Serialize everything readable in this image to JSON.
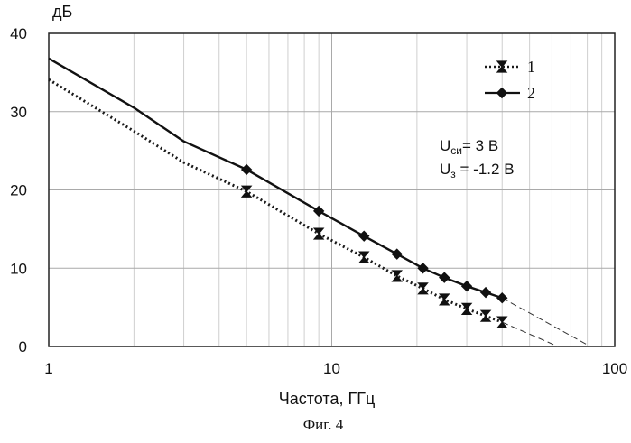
{
  "figure_caption": "Фиг. 4",
  "chart_data": {
    "type": "line",
    "x_scale": "log",
    "xlim": [
      1,
      100
    ],
    "ylim": [
      0,
      40
    ],
    "xlabel": "Частота, ГГц",
    "ylabel": "дБ",
    "x_ticks": [
      "1",
      "10",
      "100"
    ],
    "y_ticks": [
      "0",
      "10",
      "20",
      "30",
      "40"
    ],
    "grid": true,
    "legend_position": "top-right",
    "series": [
      {
        "name": "1",
        "style": "dotted",
        "marker": "hourglass",
        "color": "#1a1a1a",
        "line_x": [
          1,
          2,
          3,
          5,
          9,
          13,
          17,
          21,
          25,
          30,
          35,
          40
        ],
        "line_y": [
          34.1,
          27.5,
          23.5,
          19.8,
          14.4,
          11.4,
          9.0,
          7.4,
          6.0,
          4.8,
          3.9,
          3.1
        ],
        "marker_x": [
          5,
          9,
          13,
          17,
          21,
          25,
          30,
          35,
          40
        ],
        "marker_y": [
          19.8,
          14.4,
          11.4,
          9.0,
          7.4,
          6.0,
          4.8,
          3.9,
          3.1
        ],
        "extrapolation_x": [
          40,
          63
        ],
        "extrapolation_y": [
          3.1,
          0
        ]
      },
      {
        "name": "2",
        "style": "solid",
        "marker": "diamond",
        "color": "#111111",
        "line_x": [
          1,
          2,
          3,
          5,
          9,
          13,
          17,
          21,
          25,
          30,
          35,
          40
        ],
        "line_y": [
          36.8,
          30.5,
          26.2,
          22.6,
          17.3,
          14.1,
          11.8,
          10.0,
          8.8,
          7.7,
          6.9,
          6.2
        ],
        "marker_x": [
          5,
          9,
          13,
          17,
          21,
          25,
          30,
          35,
          40
        ],
        "marker_y": [
          22.6,
          17.3,
          14.1,
          11.8,
          10.0,
          8.8,
          7.7,
          6.9,
          6.2
        ],
        "extrapolation_x": [
          40,
          82
        ],
        "extrapolation_y": [
          6.2,
          0
        ]
      }
    ],
    "annotations": [
      {
        "base": "U",
        "sub": "си",
        "rest": "= 3 В"
      },
      {
        "base": "U",
        "sub": "з",
        "rest": " = -1.2 В"
      }
    ]
  }
}
